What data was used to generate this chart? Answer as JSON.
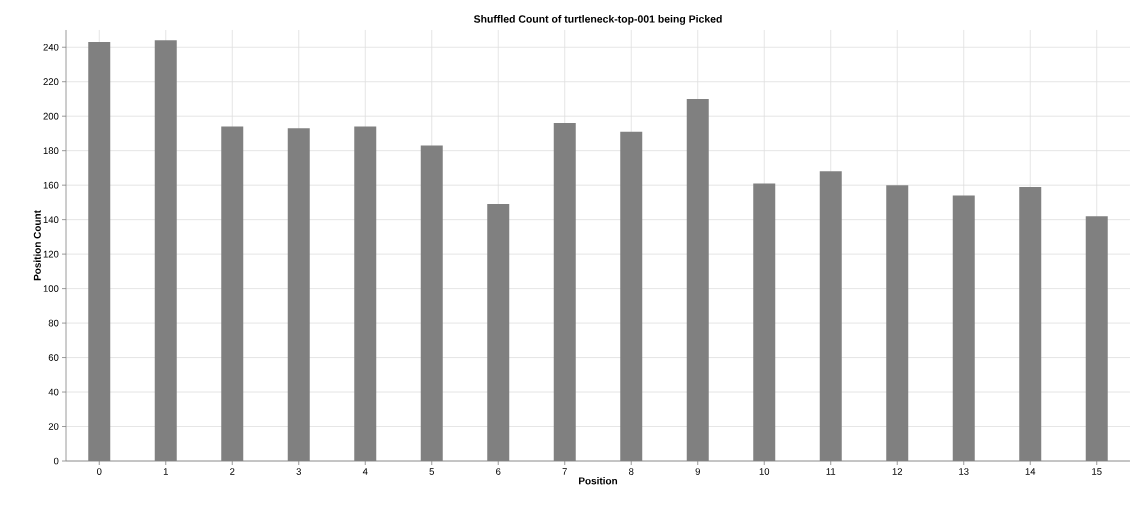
{
  "chart_data": {
    "type": "bar",
    "title": "Shuffled Count of turtleneck-top-001 being Picked",
    "xlabel": "Position",
    "ylabel": "Position Count",
    "categories": [
      "0",
      "1",
      "2",
      "3",
      "4",
      "5",
      "6",
      "7",
      "8",
      "9",
      "10",
      "11",
      "12",
      "13",
      "14",
      "15"
    ],
    "values": [
      243,
      244,
      194,
      193,
      194,
      183,
      149,
      196,
      191,
      210,
      161,
      168,
      160,
      154,
      159,
      142
    ],
    "color": "#808080",
    "ylim": [
      0,
      250
    ],
    "yticks": [
      0,
      20,
      40,
      60,
      80,
      100,
      120,
      140,
      160,
      180,
      200,
      220,
      240
    ],
    "grid": true
  }
}
